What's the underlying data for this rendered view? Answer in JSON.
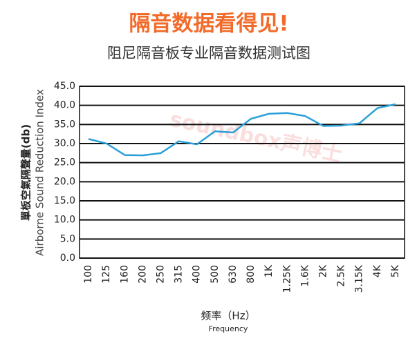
{
  "chart_data": {
    "type": "line",
    "title": "隔音数据看得见!",
    "subtitle": "阻尼隔音板专业隔音数据测试图",
    "y_label": "單板空氣隔聲量(db)",
    "y_label_en": "Airborne Sound Reduction Index",
    "x_label": "频率（Hz）",
    "x_label_en": "Frequency",
    "watermark": "soundbox声博士",
    "categories": [
      "100",
      "125",
      "160",
      "200",
      "250",
      "315",
      "400",
      "500",
      "630",
      "800",
      "1K",
      "1.25K",
      "1.6K",
      "2K",
      "2.5K",
      "3.15K",
      "4K",
      "5K"
    ],
    "values": [
      31.2,
      30.0,
      27.0,
      26.9,
      27.5,
      30.6,
      29.8,
      33.2,
      32.9,
      36.5,
      37.8,
      38.0,
      37.2,
      34.6,
      34.7,
      35.3,
      39.3,
      40.3
    ],
    "color": "#2a9fd8",
    "ylim": [
      0,
      45
    ],
    "yticks": [
      {
        "value": 0,
        "label": "0.0"
      },
      {
        "value": 5,
        "label": "5.0"
      },
      {
        "value": 10,
        "label": "10.0"
      },
      {
        "value": 15,
        "label": "15.0"
      },
      {
        "value": 20,
        "label": "20.0"
      },
      {
        "value": 25,
        "label": "25.0"
      },
      {
        "value": 30,
        "label": "30.0"
      },
      {
        "value": 35,
        "label": "35.0"
      },
      {
        "value": 40,
        "label": "40.0"
      },
      {
        "value": 45,
        "label": "45.0"
      }
    ],
    "grid": true
  }
}
